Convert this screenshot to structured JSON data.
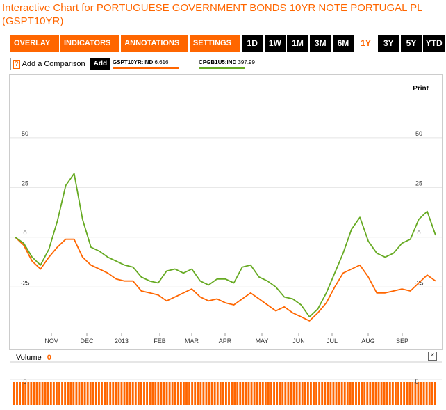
{
  "header": {
    "title": "Interactive Chart for PORTUGUESE GOVERNMENT BONDS 10YR NOTE PORTUGAL PL (GSPT10YR)"
  },
  "toolbar": {
    "menus": [
      "OVERLAY ▾",
      "INDICATORS ▾",
      "ANNOTATIONS ▾",
      "SETTINGS ▾"
    ],
    "ranges": [
      "1D",
      "1W",
      "1M",
      "3M",
      "6M",
      "1Y",
      "3Y",
      "5Y",
      "YTD"
    ],
    "active_range": "1Y"
  },
  "comparison": {
    "help": "?",
    "label": "Add a Comparison",
    "add": "Add"
  },
  "legend": [
    {
      "ticker": "GSPT10YR:IND",
      "value": "6.616",
      "color": "#ff6600"
    },
    {
      "ticker": "CPGB1U5:IND",
      "value": "397.99",
      "color": "#66aa22"
    }
  ],
  "print_label": "Print",
  "volume": {
    "label": "Volume",
    "value": "0",
    "axis_label": "0"
  },
  "close_label": "×",
  "chart_data": {
    "type": "line",
    "title": "",
    "xlabel": "",
    "ylabel": "",
    "ylim": [
      -48,
      72
    ],
    "yticks": [
      50,
      25,
      0,
      -25
    ],
    "xticks": [
      "NOV",
      "DEC",
      "2013",
      "FEB",
      "MAR",
      "APR",
      "MAY",
      "JUN",
      "JUL",
      "AUG",
      "SEP"
    ],
    "grid": true,
    "series": [
      {
        "name": "GSPT10YR:IND",
        "color": "#ff6600",
        "x": [
          0,
          2,
          4,
          6,
          8,
          10,
          12,
          14,
          16,
          18,
          20,
          22,
          24,
          26,
          28,
          30,
          32,
          34,
          36,
          38,
          40,
          42,
          44,
          46,
          48,
          50,
          52,
          54,
          56,
          58,
          60,
          62,
          64,
          66,
          68,
          70,
          72,
          74,
          76,
          78,
          80,
          82,
          84,
          86,
          88,
          90,
          92,
          94,
          96,
          98,
          100
        ],
        "values": [
          0,
          -4,
          -12,
          -16,
          -10,
          -5,
          -1,
          -1,
          -10,
          -14,
          -16,
          -18,
          -21,
          -22,
          -22,
          -27,
          -28,
          -29,
          -32,
          -30,
          -28,
          -26,
          -30,
          -32,
          -31,
          -33,
          -34,
          -31,
          -28,
          -31,
          -34,
          -37,
          -35,
          -38,
          -40,
          -42,
          -38,
          -33,
          -25,
          -18,
          -16,
          -14,
          -20,
          -28,
          -28,
          -27,
          -26,
          -27,
          -23,
          -19,
          -22
        ]
      },
      {
        "name": "CPGB1U5:IND",
        "color": "#66aa22",
        "x": [
          0,
          2,
          4,
          6,
          8,
          10,
          12,
          14,
          16,
          18,
          20,
          22,
          24,
          26,
          28,
          30,
          32,
          34,
          36,
          38,
          40,
          42,
          44,
          46,
          48,
          50,
          52,
          54,
          56,
          58,
          60,
          62,
          64,
          66,
          68,
          70,
          72,
          74,
          76,
          78,
          80,
          82,
          84,
          86,
          88,
          90,
          92,
          94,
          96,
          98,
          100
        ],
        "values": [
          0,
          -3,
          -10,
          -14,
          -6,
          8,
          26,
          32,
          9,
          -5,
          -7,
          -10,
          -12,
          -14,
          -15,
          -20,
          -22,
          -23,
          -17,
          -16,
          -18,
          -16,
          -22,
          -24,
          -21,
          -21,
          -23,
          -15,
          -14,
          -20,
          -22,
          -25,
          -30,
          -31,
          -34,
          -40,
          -36,
          -28,
          -18,
          -8,
          4,
          10,
          -2,
          -8,
          -10,
          -8,
          -3,
          -1,
          9,
          13,
          1
        ]
      }
    ],
    "volume": {
      "values": [
        0
      ]
    }
  }
}
